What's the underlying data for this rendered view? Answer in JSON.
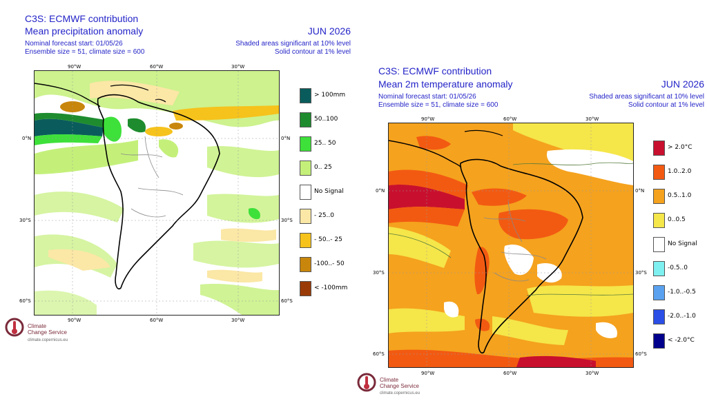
{
  "panels": [
    {
      "id": "precip",
      "title1": "C3S: ECMWF contribution",
      "title2": "Mean precipitation anomaly",
      "month": "JUN 2026",
      "nominal": "Nominal forecast start: 01/05/26",
      "ensemble": "Ensemble size = 51, climate size = 600",
      "sig1": "Shaded areas significant at 10% level",
      "sig2": "Solid contour at 1% level",
      "lon_labels": [
        "90°W",
        "60°W",
        "30°W"
      ],
      "lat_labels": [
        "0°N",
        "30°S",
        "60°S"
      ],
      "legend": [
        {
          "label": "> 100mm",
          "color": "#0a5c5c"
        },
        {
          "label": "50..100",
          "color": "#1e8c2e"
        },
        {
          "label": "25.. 50",
          "color": "#3ee03a"
        },
        {
          "label": "0.. 25",
          "color": "#c4f07a"
        },
        {
          "label": "No Signal",
          "color": "#ffffff"
        },
        {
          "label": "- 25..0",
          "color": "#fbe7a6"
        },
        {
          "label": "- 50..- 25",
          "color": "#f6c21c"
        },
        {
          "label": "-100..- 50",
          "color": "#c8860c"
        },
        {
          "label": "< -100mm",
          "color": "#9a3a06"
        }
      ]
    },
    {
      "id": "temp",
      "title1": "C3S: ECMWF contribution",
      "title2": "Mean 2m temperature anomaly",
      "month": "JUN 2026",
      "nominal": "Nominal forecast start: 01/05/26",
      "ensemble": "Ensemble size = 51, climate size = 600",
      "sig1": "Shaded areas significant at 10% level",
      "sig2": "Solid contour at 1% level",
      "lon_labels": [
        "90°W",
        "60°W",
        "30°W"
      ],
      "lat_labels": [
        "0°N",
        "30°S",
        "60°S"
      ],
      "legend": [
        {
          "label": "> 2.0°C",
          "color": "#c8102e"
        },
        {
          "label": "1.0..2.0",
          "color": "#f25a12"
        },
        {
          "label": "0.5..1.0",
          "color": "#f5a21e"
        },
        {
          "label": "0..0.5",
          "color": "#f5e64a"
        },
        {
          "label": "No Signal",
          "color": "#ffffff"
        },
        {
          "label": "-0.5..0",
          "color": "#7ff0f0"
        },
        {
          "label": "-1.0..-0.5",
          "color": "#5aa2f0"
        },
        {
          "label": "-2.0..-1.0",
          "color": "#2a4ee6"
        },
        {
          "label": "< -2.0°C",
          "color": "#00008c"
        }
      ]
    }
  ],
  "logo": {
    "line1": "Climate",
    "line2": "Change Service",
    "url": "climate.copernicus.eu"
  }
}
